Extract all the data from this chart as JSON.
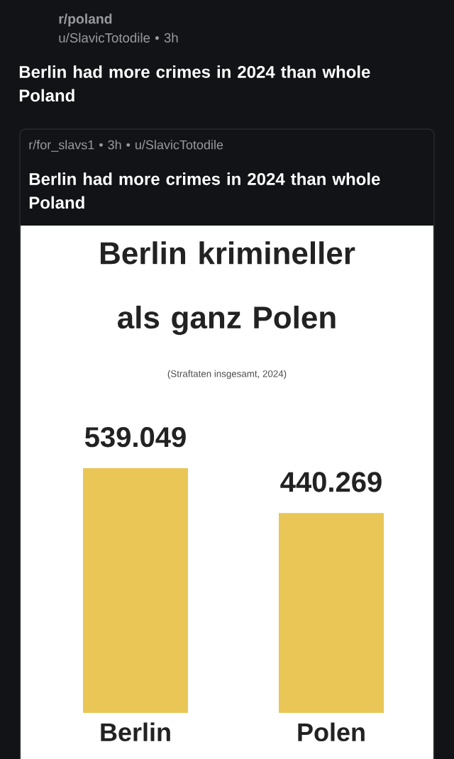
{
  "chart_data": {
    "type": "bar",
    "title": "Berlin krimineller als ganz Polen",
    "subtitle": "(Straftaten insgesamt, 2024)",
    "categories": [
      "Berlin",
      "Polen"
    ],
    "values": [
      539049,
      440269
    ],
    "value_labels": [
      "539.049",
      "440.269"
    ],
    "color": "#e9c655",
    "annotations": [
      "r/poland",
      "u/SlavicTotodile • 3h",
      "Berlin had more crimes in 2024 than whole Poland",
      "r/for_slavs1 • 3h • u/SlavicTotodile",
      "Berlin had more crimes in 2024 than whole Poland"
    ]
  }
}
